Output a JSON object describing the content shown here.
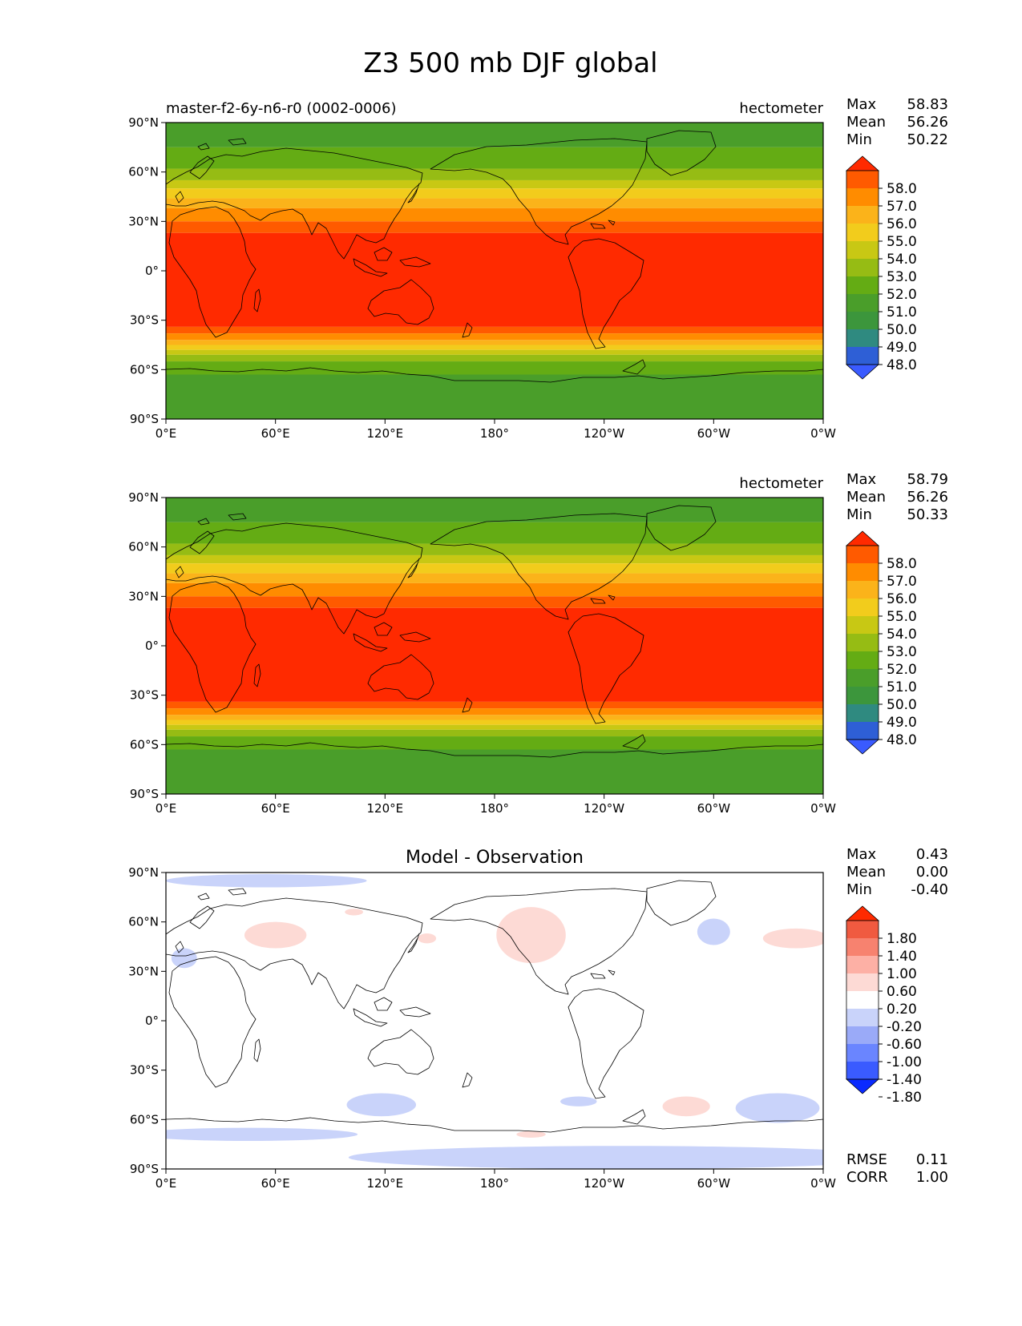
{
  "figure_title": "Z3 500 mb DJF global",
  "colors": {
    "abs_levels": [
      "#3a5bff",
      "#2e5fd6",
      "#2f8a80",
      "#3c963c",
      "#4a9e2a",
      "#64ac14",
      "#96bc14",
      "#c8c814",
      "#f2cc1c",
      "#fbb31a",
      "#ff8c00",
      "#ff5a00",
      "#ff2a00"
    ],
    "diff_levels": [
      "#0a2aff",
      "#3a5bff",
      "#6a85ff",
      "#9aaaf8",
      "#c9d3fa",
      "#ffffff",
      "#fddad5",
      "#fdb0a5",
      "#f7826f",
      "#f05a40",
      "#ff2a00"
    ],
    "coast": "#000000"
  },
  "chart_data": [
    {
      "type": "heatmap",
      "panel": "test",
      "left_title": "master-f2-6y-n6-r0 (0002-0006)",
      "right_title": "hectometer",
      "stats": {
        "Max": "58.83",
        "Mean": "56.26",
        "Min": "50.22"
      },
      "colorbar_levels": [
        "58.0",
        "57.0",
        "56.0",
        "55.0",
        "54.0",
        "53.0",
        "52.0",
        "51.0",
        "50.0",
        "49.0",
        "48.0"
      ],
      "x_ticks": [
        "0°E",
        "60°E",
        "120°E",
        "180°",
        "120°W",
        "60°W",
        "0°W"
      ],
      "y_ticks": [
        "90°N",
        "60°N",
        "30°N",
        "0°",
        "30°S",
        "60°S",
        "90°S"
      ],
      "xlim": [
        0,
        360
      ],
      "ylim": [
        -90,
        90
      ],
      "bands": [
        {
          "lat_north": 90,
          "lat_south": 75,
          "level_index": 4
        },
        {
          "lat_north": 75,
          "lat_south": 62,
          "level_index": 5
        },
        {
          "lat_north": 62,
          "lat_south": 55,
          "level_index": 6
        },
        {
          "lat_north": 55,
          "lat_south": 50,
          "level_index": 7
        },
        {
          "lat_north": 50,
          "lat_south": 44,
          "level_index": 8
        },
        {
          "lat_north": 44,
          "lat_south": 38,
          "level_index": 9
        },
        {
          "lat_north": 38,
          "lat_south": 30,
          "level_index": 10
        },
        {
          "lat_north": 30,
          "lat_south": 23,
          "level_index": 11
        },
        {
          "lat_north": 23,
          "lat_south": -34,
          "level_index": 12
        },
        {
          "lat_north": -34,
          "lat_south": -38,
          "level_index": 11
        },
        {
          "lat_north": -38,
          "lat_south": -42,
          "level_index": 10
        },
        {
          "lat_north": -42,
          "lat_south": -45,
          "level_index": 9
        },
        {
          "lat_north": -45,
          "lat_south": -48,
          "level_index": 8
        },
        {
          "lat_north": -48,
          "lat_south": -51,
          "level_index": 7
        },
        {
          "lat_north": -51,
          "lat_south": -55,
          "level_index": 6
        },
        {
          "lat_north": -55,
          "lat_south": -63,
          "level_index": 5
        },
        {
          "lat_north": -63,
          "lat_south": -90,
          "level_index": 4
        }
      ]
    },
    {
      "type": "heatmap",
      "panel": "reference",
      "left_title": "",
      "right_title": "hectometer",
      "stats": {
        "Max": "58.79",
        "Mean": "56.26",
        "Min": "50.33"
      },
      "colorbar_levels": [
        "58.0",
        "57.0",
        "56.0",
        "55.0",
        "54.0",
        "53.0",
        "52.0",
        "51.0",
        "50.0",
        "49.0",
        "48.0"
      ],
      "x_ticks": [
        "0°E",
        "60°E",
        "120°E",
        "180°",
        "120°W",
        "60°W",
        "0°W"
      ],
      "y_ticks": [
        "90°N",
        "60°N",
        "30°N",
        "0°",
        "30°S",
        "60°S",
        "90°S"
      ],
      "xlim": [
        0,
        360
      ],
      "ylim": [
        -90,
        90
      ],
      "bands": [
        {
          "lat_north": 90,
          "lat_south": 75,
          "level_index": 4
        },
        {
          "lat_north": 75,
          "lat_south": 62,
          "level_index": 5
        },
        {
          "lat_north": 62,
          "lat_south": 55,
          "level_index": 6
        },
        {
          "lat_north": 55,
          "lat_south": 50,
          "level_index": 7
        },
        {
          "lat_north": 50,
          "lat_south": 44,
          "level_index": 8
        },
        {
          "lat_north": 44,
          "lat_south": 38,
          "level_index": 9
        },
        {
          "lat_north": 38,
          "lat_south": 30,
          "level_index": 10
        },
        {
          "lat_north": 30,
          "lat_south": 23,
          "level_index": 11
        },
        {
          "lat_north": 23,
          "lat_south": -34,
          "level_index": 12
        },
        {
          "lat_north": -34,
          "lat_south": -38,
          "level_index": 11
        },
        {
          "lat_north": -38,
          "lat_south": -42,
          "level_index": 10
        },
        {
          "lat_north": -42,
          "lat_south": -45,
          "level_index": 9
        },
        {
          "lat_north": -45,
          "lat_south": -48,
          "level_index": 8
        },
        {
          "lat_north": -48,
          "lat_south": -51,
          "level_index": 7
        },
        {
          "lat_north": -51,
          "lat_south": -55,
          "level_index": 6
        },
        {
          "lat_north": -55,
          "lat_south": -63,
          "level_index": 5
        },
        {
          "lat_north": -63,
          "lat_south": -90,
          "level_index": 4
        }
      ]
    },
    {
      "type": "heatmap",
      "panel": "difference",
      "center_title": "Model - Observation",
      "stats": {
        "Max": "0.43",
        "Mean": "0.00",
        "Min": "-0.40"
      },
      "metrics": {
        "RMSE": "0.11",
        "CORR": "1.00"
      },
      "colorbar_levels": [
        "1.80",
        "1.40",
        "1.00",
        "0.60",
        "0.20",
        "-0.20",
        "-0.60",
        "-1.00",
        "-1.40",
        "-1.80"
      ],
      "x_ticks": [
        "0°E",
        "60°E",
        "120°E",
        "180°",
        "120°W",
        "60°W",
        "0°W"
      ],
      "y_ticks": [
        "90°N",
        "60°N",
        "30°N",
        "0°",
        "30°S",
        "60°S",
        "90°S"
      ],
      "xlim": [
        0,
        360
      ],
      "ylim": [
        -90,
        90
      ],
      "anomalies": [
        {
          "lon": 55,
          "lat": 85,
          "dlon": 55,
          "dlat": 4,
          "level_index": 4
        },
        {
          "lon": 10,
          "lat": 38,
          "dlon": 7,
          "dlat": 6,
          "level_index": 4
        },
        {
          "lon": 60,
          "lat": 52,
          "dlon": 17,
          "dlat": 8,
          "level_index": 6
        },
        {
          "lon": 103,
          "lat": 66,
          "dlon": 5,
          "dlat": 2,
          "level_index": 6
        },
        {
          "lon": 143,
          "lat": 50,
          "dlon": 5,
          "dlat": 3,
          "level_index": 6
        },
        {
          "lon": 200,
          "lat": 52,
          "dlon": 19,
          "dlat": 17,
          "level_index": 6
        },
        {
          "lon": 300,
          "lat": 54,
          "dlon": 9,
          "dlat": 8,
          "level_index": 4
        },
        {
          "lon": 345,
          "lat": 50,
          "dlon": 18,
          "dlat": 6,
          "level_index": 6
        },
        {
          "lon": 118,
          "lat": -51,
          "dlon": 19,
          "dlat": 7,
          "level_index": 4
        },
        {
          "lon": 226,
          "lat": -49,
          "dlon": 10,
          "dlat": 3,
          "level_index": 4
        },
        {
          "lon": 285,
          "lat": -52,
          "dlon": 13,
          "dlat": 6,
          "level_index": 6
        },
        {
          "lon": 200,
          "lat": -69,
          "dlon": 8,
          "dlat": 2,
          "level_index": 6
        },
        {
          "lon": 335,
          "lat": -53,
          "dlon": 23,
          "dlat": 9,
          "level_index": 4
        },
        {
          "lon": 45,
          "lat": -69,
          "dlon": 60,
          "dlat": 4,
          "level_index": 4
        },
        {
          "lon": 250,
          "lat": -83,
          "dlon": 150,
          "dlat": 7,
          "level_index": 4
        }
      ]
    }
  ]
}
